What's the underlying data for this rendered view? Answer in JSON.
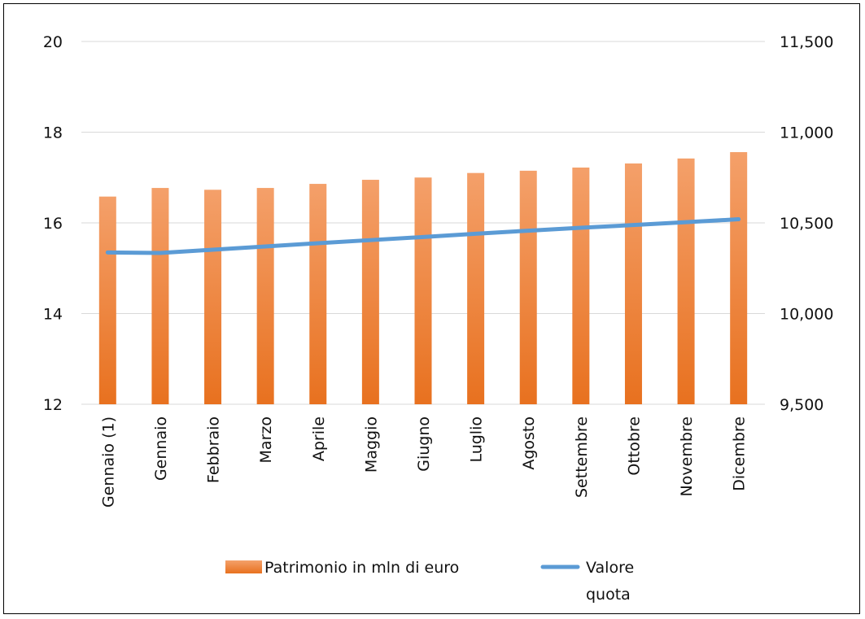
{
  "chart_data": {
    "type": "bar",
    "categories": [
      "Gennaio (1)",
      "Gennaio",
      "Febbraio",
      "Marzo",
      "Aprile",
      "Maggio",
      "Giugno",
      "Luglio",
      "Agosto",
      "Settembre",
      "Ottobre",
      "Novembre",
      "Dicembre"
    ],
    "series": [
      {
        "name": "Patrimonio in mln di euro",
        "type": "bar",
        "axis": "left",
        "color": "#ED7D31",
        "values": [
          16.58,
          16.77,
          16.73,
          16.77,
          16.86,
          16.95,
          17.0,
          17.1,
          17.15,
          17.22,
          17.31,
          17.42,
          17.56
        ]
      },
      {
        "name": "Valore quota",
        "type": "line",
        "axis": "right",
        "color": "#5B9BD5",
        "values": [
          10337,
          10334,
          10352,
          10370,
          10388,
          10405,
          10422,
          10440,
          10457,
          10473,
          10488,
          10504,
          10520
        ]
      }
    ],
    "y_left": {
      "min": 12,
      "max": 20,
      "ticks": [
        "12",
        "14",
        "16",
        "18",
        "20"
      ]
    },
    "y_right": {
      "min": 9500,
      "max": 11500,
      "ticks": [
        "9,500",
        "10,000",
        "10,500",
        "11,000",
        "11,500"
      ]
    },
    "grid": true,
    "legend": {
      "position": "bottom",
      "items": [
        "Patrimonio in mln di euro",
        "Valore quota"
      ]
    }
  }
}
